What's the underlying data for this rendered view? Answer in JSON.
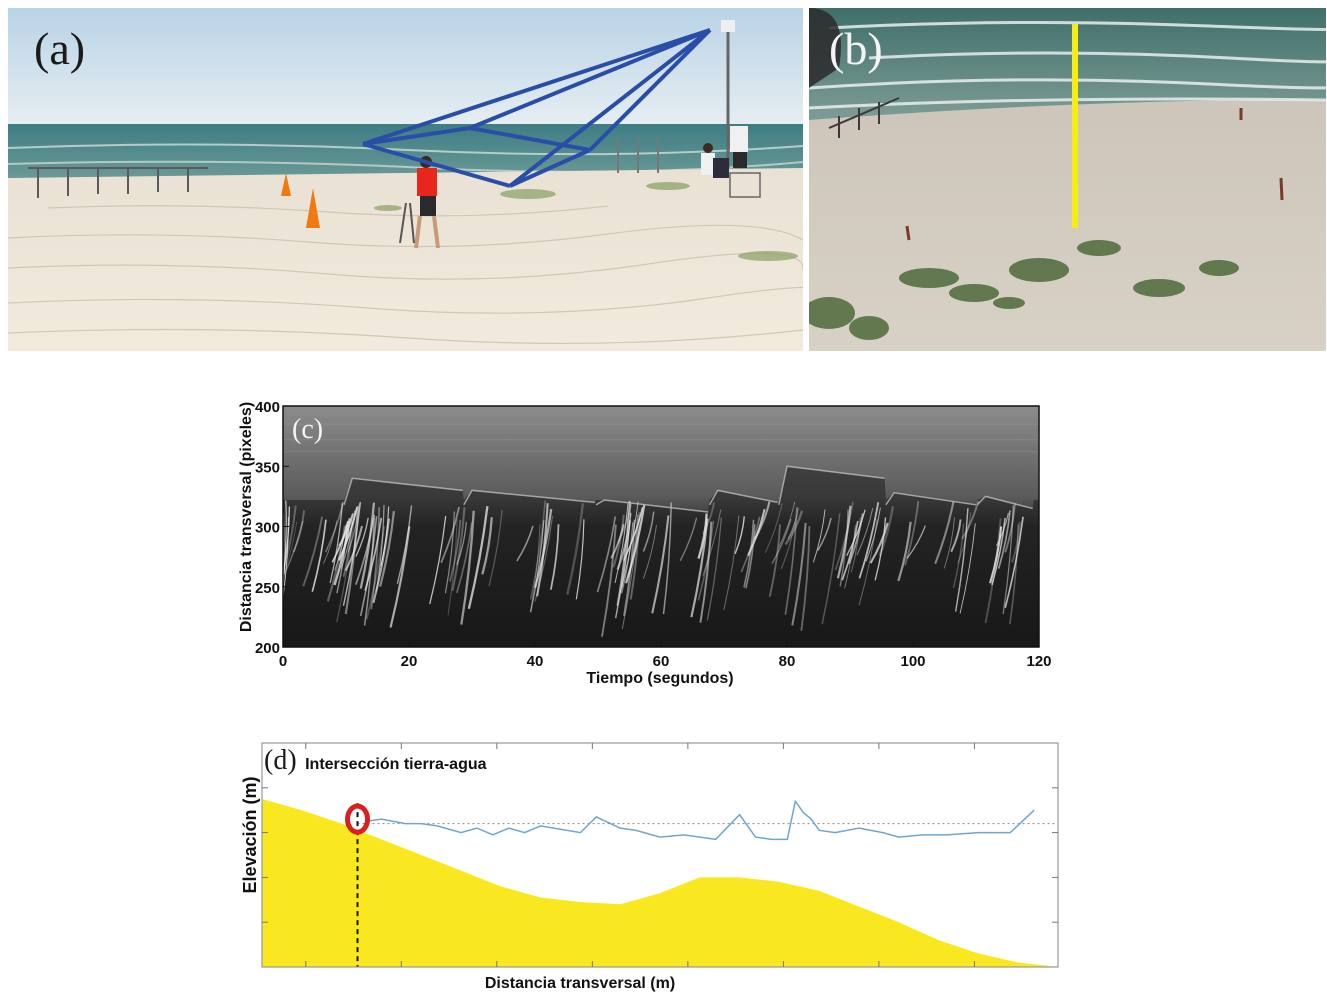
{
  "panels": {
    "a": {
      "label": "(a)"
    },
    "b": {
      "label": "(b)"
    },
    "c": {
      "label": "(c)"
    },
    "d": {
      "label": "(d)",
      "annotation": "Intersección tierra-agua"
    }
  },
  "chart_data": [
    {
      "type": "heatmap",
      "panel": "c",
      "title": "",
      "xlabel": "Tiempo (segundos)",
      "ylabel": "Distancia transversal (pixeles)",
      "xlim": [
        0,
        120
      ],
      "ylim": [
        200,
        400
      ],
      "xticks": [
        0,
        20,
        40,
        60,
        80,
        100,
        120
      ],
      "yticks": [
        200,
        250,
        300,
        350,
        400
      ],
      "xtick_labels": [
        "0",
        "20",
        "40",
        "60",
        "80",
        "100",
        "120"
      ],
      "ytick_labels": [
        "200",
        "250",
        "300",
        "350",
        "400"
      ],
      "colormap": "grayscale",
      "runup_crests": [
        {
          "x": 10.5,
          "y": 340
        },
        {
          "x": 29.5,
          "y": 330
        },
        {
          "x": 50.5,
          "y": 322
        },
        {
          "x": 68.5,
          "y": 330
        },
        {
          "x": 79.5,
          "y": 350
        },
        {
          "x": 96.5,
          "y": 328
        },
        {
          "x": 111,
          "y": 325
        }
      ]
    },
    {
      "type": "area",
      "panel": "d",
      "title": "",
      "xlabel": "Distancia transversal (m)",
      "ylabel": "Elevación (m)",
      "xlim": [
        0,
        100
      ],
      "ylim": [
        0,
        100
      ],
      "series": [
        {
          "role": "beach profile",
          "color": "#f9e81f",
          "x": [
            0,
            5,
            10,
            15,
            20,
            25,
            30,
            35,
            40,
            45,
            50,
            55,
            60,
            65,
            70,
            75,
            80,
            85,
            90,
            95,
            100
          ],
          "y": [
            75,
            70,
            64,
            57,
            50,
            43,
            36,
            31,
            29,
            28,
            33,
            40,
            40,
            38,
            34,
            27,
            20,
            12,
            6,
            2,
            0
          ]
        },
        {
          "role": "water level",
          "color": "#6fa6d0",
          "x": [
            13,
            15,
            18,
            20,
            22,
            25,
            27,
            29,
            31,
            33,
            35,
            40,
            42,
            45,
            47,
            50,
            53,
            57,
            60,
            62,
            64,
            66,
            67,
            68,
            69,
            70,
            72,
            75,
            78,
            80,
            83,
            86,
            90,
            92,
            94,
            97
          ],
          "y": [
            65,
            66,
            64,
            64,
            63,
            60,
            62,
            59,
            62,
            60,
            63,
            60,
            67,
            62,
            61,
            58,
            59,
            57,
            68,
            58,
            57,
            57,
            74,
            69,
            66,
            61,
            60,
            62,
            60,
            58,
            59,
            59,
            60,
            60,
            60,
            70
          ]
        }
      ],
      "reference_level": 64,
      "intersection": {
        "x": 12,
        "y": 66
      },
      "annotation": "Intersección tierra-agua",
      "colors": {
        "sand": "#f9e81f",
        "water": "#6fa6d0",
        "marker": "#d91f1f"
      }
    }
  ]
}
